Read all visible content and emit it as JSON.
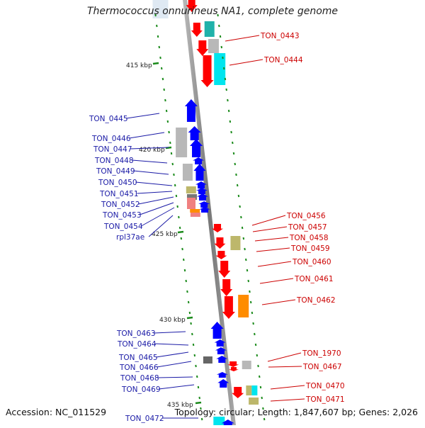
{
  "title": "Thermococcus onnurineus NA1, complete genome",
  "footer": {
    "accession": "Accession: NC_011529",
    "topology": "Topology: circular; Length: 1,847,607 bp; Genes: 2,026"
  },
  "colors": {
    "forward": "#ff0000",
    "reverse": "#0000ff",
    "cyan": "#00e5ee",
    "teal": "#20b2aa",
    "gray": "#b8b8b8",
    "khaki": "#bdb76b",
    "orange": "#ff8c00",
    "tick": "#1a8a1a"
  },
  "ruler": [
    {
      "label": "415 kbp"
    },
    {
      "label": "420 kbp"
    },
    {
      "label": "425 kbp"
    },
    {
      "label": "430 kbp"
    },
    {
      "label": "435 kbp"
    }
  ],
  "genes_left": [
    {
      "label": "TON_0445"
    },
    {
      "label": "TON_0446"
    },
    {
      "label": "TON_0447"
    },
    {
      "label": "TON_0448"
    },
    {
      "label": "TON_0449"
    },
    {
      "label": "TON_0450"
    },
    {
      "label": "TON_0451"
    },
    {
      "label": "TON_0452"
    },
    {
      "label": "TON_0453"
    },
    {
      "label": "TON_0454"
    },
    {
      "label": "rpl37ae"
    },
    {
      "label": "TON_0463"
    },
    {
      "label": "TON_0464"
    },
    {
      "label": "TON_0465"
    },
    {
      "label": "TON_0466"
    },
    {
      "label": "TON_0468"
    },
    {
      "label": "TON_0469"
    },
    {
      "label": "TON_0472"
    }
  ],
  "genes_right": [
    {
      "label": "TON_0443"
    },
    {
      "label": "TON_0444"
    },
    {
      "label": "TON_0456"
    },
    {
      "label": "TON_0457"
    },
    {
      "label": "TON_0458"
    },
    {
      "label": "TON_0459"
    },
    {
      "label": "TON_0460"
    },
    {
      "label": "TON_0461"
    },
    {
      "label": "TON_0462"
    },
    {
      "label": "TON_1970"
    },
    {
      "label": "TON_0467"
    },
    {
      "label": "TON_0470"
    },
    {
      "label": "TON_0471"
    }
  ]
}
